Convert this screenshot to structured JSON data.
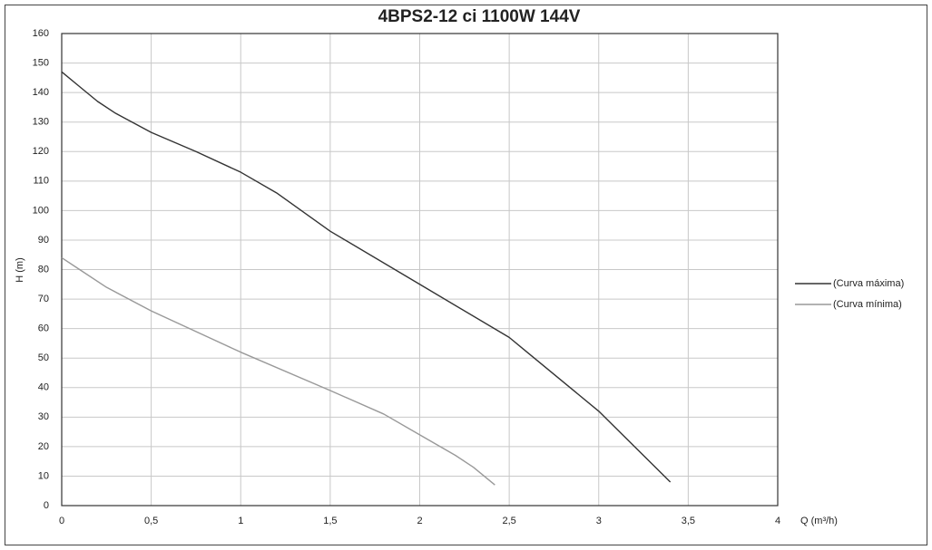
{
  "chart_data": {
    "type": "line",
    "title": "4BPS2-12 ci 1100W 144V",
    "xlabel": "Q (m³/h)",
    "ylabel": "H (m)",
    "xlim": [
      0,
      4
    ],
    "xticks": [
      0,
      {
        "value": 0.5,
        "label": "0,5"
      },
      1,
      {
        "value": 1.5,
        "label": "1,5"
      },
      2,
      {
        "value": 2.5,
        "label": "2,5"
      },
      3,
      {
        "value": 3.5,
        "label": "3,5"
      },
      4
    ],
    "ylim": [
      0,
      160
    ],
    "yticks": [
      0,
      10,
      20,
      30,
      40,
      50,
      60,
      70,
      80,
      90,
      100,
      110,
      120,
      130,
      140,
      150,
      160
    ],
    "grid": true,
    "legend": "right",
    "series": [
      {
        "name": "(Curva máxima)",
        "color": "#333333",
        "x": [
          0,
          0.1,
          0.2,
          0.3,
          0.5,
          0.75,
          1,
          1.2,
          1.5,
          2,
          2.5,
          2.6,
          3,
          3.2,
          3.4
        ],
        "values": [
          147,
          142,
          137,
          133,
          126.5,
          120,
          113,
          106,
          93,
          75,
          57,
          52,
          32,
          20,
          8
        ]
      },
      {
        "name": "(Curva mínima)",
        "color": "#999999",
        "x": [
          0,
          0.1,
          0.25,
          0.5,
          1,
          1.5,
          1.8,
          2,
          2.2,
          2.3,
          2.42
        ],
        "values": [
          84,
          80,
          74,
          66,
          52,
          39,
          31,
          24,
          17,
          13,
          7
        ]
      }
    ]
  }
}
